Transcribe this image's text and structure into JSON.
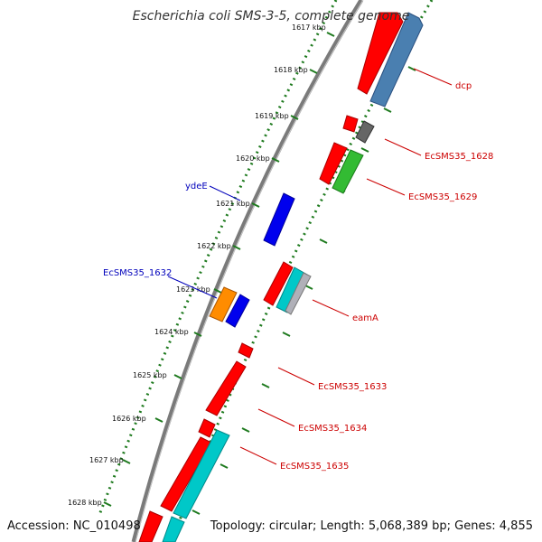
{
  "title": "Escherichia coli SMS-3-5, complete genome",
  "footer": {
    "accession": "Accession: NC_010498",
    "topology": "Topology: circular; Length: 5,068,389 bp; Genes: 4,855"
  },
  "tick_labels": [
    "1617 kbp",
    "1618 kbp",
    "1619 kbp",
    "1620 kbp",
    "1621 kbp",
    "1622 kbp",
    "1623 kbp",
    "1624 kbp",
    "1625 kbp",
    "1626 kbp",
    "1627 kbp",
    "1628 kbp"
  ],
  "gene_labels": {
    "dcp": "dcp",
    "ecsms35_1628": "EcSMS35_1628",
    "ecsms35_1629": "EcSMS35_1629",
    "eama": "eamA",
    "ecsms35_1633": "EcSMS35_1633",
    "ecsms35_1634": "EcSMS35_1634",
    "ecsms35_1635": "EcSMS35_1635",
    "ydee": "ydeE",
    "ecsms35_1632": "EcSMS35_1632"
  },
  "colors": {
    "backbone": "#777777",
    "tick_green": "#1e7a1e",
    "forward_label": "#cc0000",
    "reverse_label": "#0000bb",
    "red_gene": "#ff0000",
    "blue_gene": "#0000ee",
    "steel_gene": "#4a7fb0",
    "cyan_gene": "#00c8c8",
    "green_gene": "#33bb33",
    "orange_gene": "#ff8c00",
    "gray_gene": "#666666"
  }
}
